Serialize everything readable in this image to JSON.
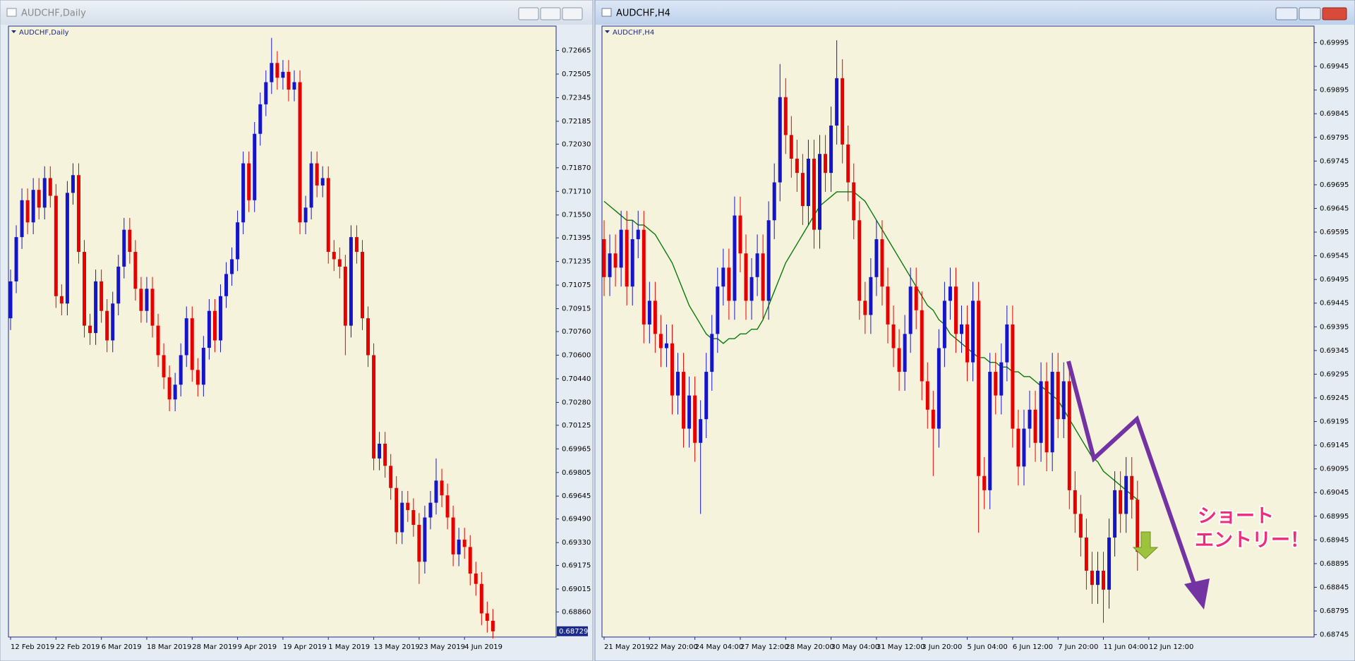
{
  "chart_data": [
    {
      "type": "candlestick",
      "title": "AUDCHF,Daily",
      "up_color": "#1414c8",
      "down_color": "#e60000",
      "ylim": [
        0.6869,
        0.7283
      ],
      "yticks": [
        0.72665,
        0.72505,
        0.72345,
        0.72185,
        {
          "value": 0.7203,
          "label": "0.72030"
        },
        {
          "value": 0.7187,
          "label": "0.71870"
        },
        {
          "value": 0.7171,
          "label": "0.71710"
        },
        {
          "value": 0.7155,
          "label": "0.71550"
        },
        0.71395,
        0.71235,
        0.71075,
        0.70915,
        {
          "value": 0.7076,
          "label": "0.70760"
        },
        {
          "value": 0.706,
          "label": "0.70600"
        },
        {
          "value": 0.7044,
          "label": "0.70440"
        },
        {
          "value": 0.7028,
          "label": "0.70280"
        },
        0.70125,
        0.69965,
        0.69805,
        0.69645,
        {
          "value": 0.6949,
          "label": "0.69490"
        },
        {
          "value": 0.6933,
          "label": "0.69330"
        },
        0.69175,
        0.69015,
        {
          "value": 0.6886,
          "label": "0.68860"
        }
      ],
      "last_price": 0.68729,
      "categories": [
        "12 Feb 2019",
        null,
        null,
        null,
        null,
        null,
        null,
        null,
        "22 Feb 2019",
        null,
        null,
        null,
        null,
        null,
        null,
        null,
        "6 Mar 2019",
        null,
        null,
        null,
        null,
        null,
        null,
        null,
        "18 Mar 2019",
        null,
        null,
        null,
        null,
        null,
        null,
        null,
        "28 Mar 2019",
        null,
        null,
        null,
        null,
        null,
        null,
        null,
        "9 Apr 2019",
        null,
        null,
        null,
        null,
        null,
        null,
        null,
        "19 Apr 2019",
        null,
        null,
        null,
        null,
        null,
        null,
        null,
        "1 May 2019",
        null,
        null,
        null,
        null,
        null,
        null,
        null,
        "13 May 2019",
        null,
        null,
        null,
        null,
        null,
        null,
        null,
        "23 May 2019",
        null,
        null,
        null,
        null,
        null,
        null,
        null,
        "4 Jun 2019",
        null,
        null,
        null,
        null,
        null
      ],
      "open": [
        0.7085,
        0.711,
        0.714,
        0.7165,
        0.715,
        0.7172,
        0.716,
        0.718,
        0.7168,
        0.71,
        0.7095,
        0.717,
        0.7182,
        0.713,
        0.708,
        0.7075,
        0.711,
        0.709,
        0.707,
        0.7095,
        0.712,
        0.7145,
        0.713,
        0.7105,
        0.709,
        0.7105,
        0.708,
        0.706,
        0.7045,
        0.703,
        0.704,
        0.706,
        0.7085,
        0.705,
        0.704,
        0.7065,
        0.709,
        0.707,
        0.71,
        0.7115,
        0.7125,
        0.715,
        0.719,
        0.7165,
        0.721,
        0.723,
        0.7245,
        0.7258,
        0.7248,
        0.7252,
        0.724,
        0.7245,
        0.715,
        0.716,
        0.719,
        0.7175,
        0.718,
        0.713,
        0.7125,
        0.712,
        0.708,
        0.714,
        0.713,
        0.7085,
        0.706,
        0.699,
        0.7,
        0.6985,
        0.697,
        0.694,
        0.696,
        0.6955,
        0.6945,
        0.692,
        0.695,
        0.696,
        0.6975,
        0.6965,
        0.695,
        0.6925,
        0.6935,
        0.693,
        0.6912,
        0.6905,
        0.6885,
        0.688
      ],
      "high": [
        0.7118,
        0.7148,
        0.7173,
        0.7173,
        0.718,
        0.718,
        0.7188,
        0.7188,
        0.7176,
        0.7108,
        0.7178,
        0.719,
        0.719,
        0.7138,
        0.7088,
        0.7118,
        0.7118,
        0.7098,
        0.7103,
        0.7128,
        0.7153,
        0.7153,
        0.7138,
        0.7113,
        0.7113,
        0.7113,
        0.7088,
        0.7068,
        0.7053,
        0.7048,
        0.7068,
        0.7093,
        0.7093,
        0.7058,
        0.7073,
        0.7098,
        0.7098,
        0.7108,
        0.7123,
        0.7133,
        0.7158,
        0.7198,
        0.7198,
        0.7218,
        0.7238,
        0.7253,
        0.7275,
        0.7266,
        0.726,
        0.726,
        0.7253,
        0.7253,
        0.7168,
        0.7198,
        0.7198,
        0.7188,
        0.7188,
        0.7138,
        0.7133,
        0.7128,
        0.7148,
        0.7148,
        0.7138,
        0.7093,
        0.7068,
        0.7008,
        0.7008,
        0.6993,
        0.6978,
        0.6968,
        0.6968,
        0.6963,
        0.6953,
        0.6958,
        0.6968,
        0.699,
        0.6983,
        0.6973,
        0.6958,
        0.6943,
        0.6943,
        0.6938,
        0.692,
        0.6913,
        0.6893,
        0.6888
      ],
      "low": [
        0.7077,
        0.7102,
        0.7132,
        0.7142,
        0.7142,
        0.7152,
        0.7152,
        0.716,
        0.7092,
        0.7087,
        0.7087,
        0.7162,
        0.7122,
        0.7072,
        0.7067,
        0.7067,
        0.7082,
        0.7062,
        0.7062,
        0.7087,
        0.7112,
        0.7122,
        0.7097,
        0.7082,
        0.7082,
        0.7072,
        0.7052,
        0.7037,
        0.7022,
        0.7022,
        0.7032,
        0.7052,
        0.7042,
        0.7032,
        0.7032,
        0.7057,
        0.7062,
        0.7062,
        0.7092,
        0.7107,
        0.7117,
        0.7142,
        0.7157,
        0.7157,
        0.7202,
        0.7222,
        0.7237,
        0.724,
        0.724,
        0.7232,
        0.7232,
        0.7142,
        0.7142,
        0.7152,
        0.7167,
        0.7167,
        0.7122,
        0.7117,
        0.7112,
        0.706,
        0.7072,
        0.7122,
        0.7077,
        0.7052,
        0.6982,
        0.6982,
        0.6977,
        0.6962,
        0.6932,
        0.6932,
        0.6947,
        0.6937,
        0.6905,
        0.6912,
        0.6942,
        0.6952,
        0.6957,
        0.6942,
        0.6917,
        0.6917,
        0.6922,
        0.6904,
        0.6897,
        0.6877,
        0.6872,
        0.6868
      ],
      "close": [
        0.711,
        0.714,
        0.7165,
        0.715,
        0.7172,
        0.716,
        0.718,
        0.7168,
        0.71,
        0.7095,
        0.717,
        0.7182,
        0.713,
        0.708,
        0.7075,
        0.711,
        0.709,
        0.707,
        0.7095,
        0.712,
        0.7145,
        0.713,
        0.7105,
        0.709,
        0.7105,
        0.708,
        0.706,
        0.7045,
        0.703,
        0.704,
        0.706,
        0.7085,
        0.705,
        0.704,
        0.7065,
        0.709,
        0.707,
        0.71,
        0.7115,
        0.7125,
        0.715,
        0.719,
        0.7165,
        0.721,
        0.723,
        0.7245,
        0.7258,
        0.7248,
        0.7252,
        0.724,
        0.7245,
        0.715,
        0.716,
        0.719,
        0.7175,
        0.718,
        0.713,
        0.7125,
        0.712,
        0.708,
        0.714,
        0.713,
        0.7085,
        0.706,
        0.699,
        0.7,
        0.6985,
        0.697,
        0.694,
        0.696,
        0.6955,
        0.6945,
        0.692,
        0.695,
        0.696,
        0.6975,
        0.6965,
        0.695,
        0.6925,
        0.6935,
        0.693,
        0.6912,
        0.6905,
        0.6885,
        0.688,
        0.68729
      ]
    },
    {
      "type": "candlestick",
      "title": "AUDCHF,H4",
      "up_color": "#1414c8",
      "down_color": "#e60000",
      "ylim": [
        0.6874,
        0.7003
      ],
      "yticks": [
        0.69995,
        0.69945,
        0.69895,
        0.69845,
        0.69795,
        0.69745,
        0.69695,
        0.69645,
        0.69595,
        0.69545,
        0.69495,
        0.69445,
        0.69395,
        0.69345,
        0.69295,
        0.69245,
        0.69195,
        0.69145,
        0.69095,
        0.69045,
        0.68995,
        0.68945,
        0.68895,
        0.68845,
        0.68795,
        0.68745
      ],
      "categories": [
        "21 May 2019",
        null,
        null,
        null,
        null,
        null,
        null,
        null,
        "22 May 20:00",
        null,
        null,
        null,
        null,
        null,
        null,
        null,
        "24 May 04:00",
        null,
        null,
        null,
        null,
        null,
        null,
        null,
        "27 May 12:00",
        null,
        null,
        null,
        null,
        null,
        null,
        null,
        "28 May 20:00",
        null,
        null,
        null,
        null,
        null,
        null,
        null,
        "30 May 04:00",
        null,
        null,
        null,
        null,
        null,
        null,
        null,
        "31 May 12:00",
        null,
        null,
        null,
        null,
        null,
        null,
        null,
        "3 Jun 20:00",
        null,
        null,
        null,
        null,
        null,
        null,
        null,
        "5 Jun 04:00",
        null,
        null,
        null,
        null,
        null,
        null,
        null,
        "6 Jun 12:00",
        null,
        null,
        null,
        null,
        null,
        null,
        null,
        "7 Jun 20:00",
        null,
        null,
        null,
        null,
        null,
        null,
        null,
        "11 Jun 04:00",
        null,
        null,
        null,
        null,
        null,
        null,
        null,
        "12 Jun 12:00"
      ],
      "open": [
        0.6958,
        0.695,
        0.6955,
        0.6952,
        0.696,
        0.6948,
        0.6958,
        0.696,
        0.694,
        0.6945,
        0.6938,
        0.6935,
        0.6936,
        0.6925,
        0.693,
        0.6918,
        0.6925,
        0.6915,
        0.692,
        0.693,
        0.6938,
        0.6948,
        0.6952,
        0.6945,
        0.6963,
        0.6955,
        0.6945,
        0.695,
        0.6955,
        0.6945,
        0.6962,
        0.697,
        0.6988,
        0.698,
        0.6975,
        0.6972,
        0.6965,
        0.6975,
        0.696,
        0.6976,
        0.6972,
        0.6982,
        0.6992,
        0.6978,
        0.697,
        0.6962,
        0.6945,
        0.6942,
        0.695,
        0.6958,
        0.6948,
        0.694,
        0.6935,
        0.693,
        0.6938,
        0.6948,
        0.6943,
        0.6928,
        0.6922,
        0.6918,
        0.6935,
        0.6945,
        0.6948,
        0.6938,
        0.694,
        0.6932,
        0.6945,
        0.6908,
        0.6905,
        0.693,
        0.6925,
        0.6932,
        0.694,
        0.6918,
        0.691,
        0.6918,
        0.6922,
        0.6915,
        0.6928,
        0.6913,
        0.693,
        0.692,
        0.6928,
        0.6905,
        0.69,
        0.6895,
        0.6888,
        0.6885,
        0.6888,
        0.6884,
        0.6895,
        0.6905,
        0.69,
        0.6908,
        0.6903,
        null,
        null
      ],
      "high": [
        0.6962,
        0.6959,
        0.6959,
        0.6964,
        0.6964,
        0.6962,
        0.6964,
        0.6964,
        0.6949,
        0.6949,
        0.6942,
        0.694,
        0.694,
        0.6934,
        0.6934,
        0.6929,
        0.6929,
        0.6924,
        0.6934,
        0.6942,
        0.6952,
        0.6956,
        0.6956,
        0.6967,
        0.6967,
        0.6959,
        0.6954,
        0.6959,
        0.6959,
        0.6966,
        0.6974,
        0.6995,
        0.6992,
        0.6984,
        0.6979,
        0.6976,
        0.6979,
        0.6979,
        0.698,
        0.698,
        0.6986,
        0.7,
        0.6996,
        0.6982,
        0.6974,
        0.6966,
        0.6949,
        0.6954,
        0.6962,
        0.6962,
        0.6952,
        0.6944,
        0.6939,
        0.6942,
        0.6952,
        0.6952,
        0.6947,
        0.6932,
        0.6926,
        0.6939,
        0.6949,
        0.6952,
        0.6952,
        0.6944,
        0.6944,
        0.6949,
        0.6949,
        0.6912,
        0.6934,
        0.6934,
        0.6936,
        0.6944,
        0.6944,
        0.6922,
        0.6922,
        0.6926,
        0.6926,
        0.6932,
        0.6932,
        0.6934,
        0.6934,
        0.6932,
        0.6932,
        0.6909,
        0.6904,
        0.6899,
        0.6892,
        0.6892,
        0.6892,
        0.6899,
        0.6909,
        0.6909,
        0.6912,
        0.6912,
        0.6907,
        null,
        null
      ],
      "low": [
        0.6946,
        0.6946,
        0.6948,
        0.6948,
        0.6944,
        0.6944,
        0.6954,
        0.6936,
        0.6936,
        0.6934,
        0.6931,
        0.6931,
        0.6921,
        0.6921,
        0.6914,
        0.6914,
        0.6911,
        0.69,
        0.6916,
        0.6926,
        0.6934,
        0.6944,
        0.6941,
        0.6941,
        0.6951,
        0.6941,
        0.6941,
        0.6946,
        0.6941,
        0.6941,
        0.6958,
        0.6966,
        0.6976,
        0.6971,
        0.6968,
        0.6961,
        0.6961,
        0.6956,
        0.6956,
        0.6968,
        0.6968,
        0.6978,
        0.6974,
        0.6966,
        0.6958,
        0.6941,
        0.6938,
        0.6938,
        0.6946,
        0.6944,
        0.6936,
        0.6931,
        0.6926,
        0.6926,
        0.6934,
        0.6939,
        0.6924,
        0.6918,
        0.6908,
        0.6914,
        0.6931,
        0.6941,
        0.6934,
        0.6934,
        0.6928,
        0.6928,
        0.6896,
        0.6901,
        0.6901,
        0.6921,
        0.6921,
        0.6928,
        0.6914,
        0.6906,
        0.6906,
        0.6914,
        0.6911,
        0.6911,
        0.6909,
        0.6909,
        0.6916,
        0.6916,
        0.6901,
        0.6896,
        0.6891,
        0.6884,
        0.6881,
        0.6881,
        0.6877,
        0.688,
        0.6891,
        0.6896,
        0.6896,
        0.6899,
        0.6888,
        null,
        null
      ],
      "close": [
        0.695,
        0.6955,
        0.6952,
        0.696,
        0.6948,
        0.6958,
        0.696,
        0.694,
        0.6945,
        0.6938,
        0.6935,
        0.6936,
        0.6925,
        0.693,
        0.6918,
        0.6925,
        0.6915,
        0.692,
        0.693,
        0.6938,
        0.6948,
        0.6952,
        0.6945,
        0.6963,
        0.6955,
        0.6945,
        0.695,
        0.6955,
        0.6945,
        0.6962,
        0.697,
        0.6988,
        0.698,
        0.6975,
        0.6972,
        0.6965,
        0.6975,
        0.696,
        0.6976,
        0.6972,
        0.6982,
        0.6992,
        0.6978,
        0.697,
        0.6962,
        0.6945,
        0.6942,
        0.695,
        0.6958,
        0.6948,
        0.694,
        0.6935,
        0.693,
        0.6938,
        0.6948,
        0.6943,
        0.6928,
        0.6922,
        0.6918,
        0.6935,
        0.6945,
        0.6948,
        0.6938,
        0.694,
        0.6932,
        0.6945,
        0.6908,
        0.6905,
        0.693,
        0.6925,
        0.6932,
        0.694,
        0.6918,
        0.691,
        0.6918,
        0.6922,
        0.6915,
        0.6928,
        0.6913,
        0.693,
        0.692,
        0.6928,
        0.6905,
        0.69,
        0.6895,
        0.6888,
        0.6885,
        0.6888,
        0.6884,
        0.6895,
        0.6905,
        0.69,
        0.6908,
        0.6903,
        0.6892,
        null,
        null
      ],
      "moving_average": {
        "color": "#0a7a0a",
        "values": [
          0.6966,
          0.6965,
          0.6964,
          0.6963,
          0.6962,
          0.6962,
          0.6961,
          0.6961,
          0.696,
          0.6959,
          0.6957,
          0.6955,
          0.6953,
          0.695,
          0.6947,
          0.6944,
          0.6942,
          0.694,
          0.6938,
          0.6937,
          0.6937,
          0.6936,
          0.6937,
          0.6937,
          0.6938,
          0.6938,
          0.6939,
          0.6939,
          0.6941,
          0.6944,
          0.6947,
          0.695,
          0.6953,
          0.6955,
          0.6957,
          0.6959,
          0.6961,
          0.6963,
          0.6965,
          0.6966,
          0.6967,
          0.6968,
          0.6968,
          0.6968,
          0.6968,
          0.6967,
          0.6966,
          0.6964,
          0.6962,
          0.696,
          0.6958,
          0.6956,
          0.6954,
          0.6952,
          0.695,
          0.6948,
          0.6946,
          0.6944,
          0.6943,
          0.6941,
          0.694,
          0.6938,
          0.6937,
          0.6936,
          0.6935,
          0.6934,
          0.6933,
          0.6933,
          0.6932,
          0.6932,
          0.6931,
          0.6931,
          0.693,
          0.693,
          0.6929,
          0.6929,
          0.6928,
          0.6927,
          0.6926,
          0.6925,
          0.6924,
          0.6922,
          0.692,
          0.6918,
          0.6916,
          0.6914,
          0.6912,
          0.6911,
          0.6909,
          0.6908,
          0.6907,
          0.6906,
          0.6905,
          0.6904,
          0.6903,
          null,
          null
        ]
      },
      "annotations": [
        "ショート",
        "エントリー！"
      ]
    }
  ]
}
